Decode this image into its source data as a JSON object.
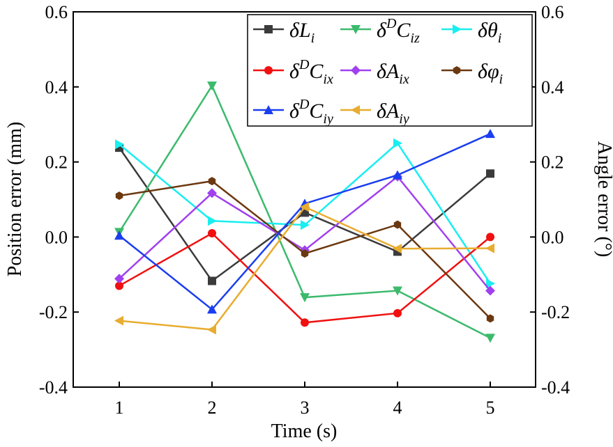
{
  "chart_data": {
    "type": "line",
    "xlabel": "Time (s)",
    "ylabel": "Position error  (mm)",
    "y2label": "Angle error  (°)",
    "x": [
      1,
      2,
      3,
      4,
      5
    ],
    "xticks": [
      "1",
      "2",
      "3",
      "4",
      "5"
    ],
    "ylim": [
      -0.4,
      0.6
    ],
    "y2lim": [
      -0.4,
      0.6
    ],
    "yticks": [
      "-0.4",
      "-0.2",
      "0.0",
      "0.2",
      "0.4",
      "0.6"
    ],
    "y2ticks": [
      "-0.4",
      "-0.2",
      "0.0",
      "0.2",
      "0.4",
      "0.6"
    ],
    "grid": false,
    "legend_position": "top-right",
    "series": [
      {
        "name": {
          "main": "δL",
          "sup": "",
          "sub": "i"
        },
        "color": "#3b3b3b",
        "marker": "square",
        "values": [
          0.238,
          -0.117,
          0.065,
          -0.039,
          0.169
        ]
      },
      {
        "name": {
          "main": "δ",
          "sup": "D",
          "main2": "C",
          "sub": "iz"
        },
        "color": "#3cba6c",
        "marker": "triangle-down",
        "values": [
          0.013,
          0.403,
          -0.161,
          -0.143,
          -0.269
        ]
      },
      {
        "name": {
          "main": "δθ",
          "sup": "",
          "sub": "i"
        },
        "color": "#19eef0",
        "marker": "triangle-right",
        "values": [
          0.247,
          0.043,
          0.032,
          0.25,
          -0.124
        ]
      },
      {
        "name": {
          "main": "δ",
          "sup": "D",
          "main2": "C",
          "sub": "ix"
        },
        "color": "#f01010",
        "marker": "circle",
        "values": [
          -0.13,
          0.01,
          -0.228,
          -0.203,
          0.0
        ]
      },
      {
        "name": {
          "main": "δA",
          "sup": "",
          "sub": "ix"
        },
        "color": "#a040f0",
        "marker": "diamond",
        "values": [
          -0.111,
          0.117,
          -0.035,
          0.161,
          -0.143
        ]
      },
      {
        "name": {
          "main": "δφ",
          "sup": "",
          "sub": "i"
        },
        "color": "#6b3810",
        "marker": "hexagon",
        "values": [
          0.11,
          0.149,
          -0.044,
          0.033,
          -0.217
        ]
      },
      {
        "name": {
          "main": "δ",
          "sup": "D",
          "main2": "C",
          "sub": "iy"
        },
        "color": "#1a3ef0",
        "marker": "triangle-up",
        "values": [
          0.004,
          -0.193,
          0.089,
          0.165,
          0.275
        ]
      },
      {
        "name": {
          "main": "δA",
          "sup": "",
          "sub": "iy"
        },
        "color": "#e8ac30",
        "marker": "triangle-left",
        "values": [
          -0.223,
          -0.247,
          0.08,
          -0.031,
          -0.03
        ]
      }
    ]
  }
}
